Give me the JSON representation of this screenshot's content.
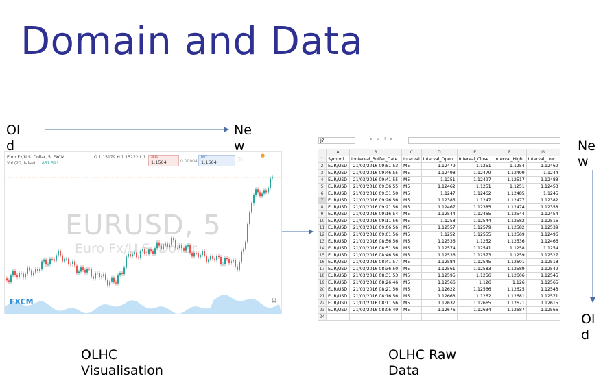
{
  "slide": {
    "title": "Domain and Data",
    "old_left": "Old",
    "new_top": "New",
    "new_right": "New",
    "old_right": "Old",
    "caption_left": "OLHC Visualisation",
    "caption_right": "OLHC Raw Data"
  },
  "chart_image": {
    "header_title": "Euro Fx/U.S. Dollar, 5, FXCM",
    "ohlc": "O 1.15179 H 1.15222 L 1.",
    "volume_label": "Vol (20, false)",
    "volume_values": "851 591",
    "sell_label": "SELL",
    "sell_price": "1.1564",
    "spread": "0.00004",
    "buy_label": "BUY",
    "buy_price": "1.1564",
    "watermark_symbol": "EURUSD, 5",
    "watermark_name": "Euro Fx/U.S. Dollar",
    "logo": "FXCM",
    "colors": {
      "up": "#26a69a",
      "down": "#ef5350",
      "volume": "#8fc9ef"
    }
  },
  "sheet_image": {
    "name_box": "J7",
    "fx_label": "fx",
    "columns": [
      "A",
      "B",
      "C",
      "D",
      "E",
      "F",
      "G"
    ],
    "headers": [
      "Symbol",
      "Innterval_Buffer_Date",
      "Interval",
      "Interval_Open",
      "Interval_Close",
      "Interval_High",
      "Interval_Low"
    ],
    "rows": [
      [
        "EUR/USD",
        "21/03/2016 09:51:53",
        "M5",
        "1.12479",
        "1.1251",
        "1.1254",
        "1.12469"
      ],
      [
        "EUR/USD",
        "21/03/2016 09:46:55",
        "M5",
        "1.12498",
        "1.12479",
        "1.12499",
        "1.1244"
      ],
      [
        "EUR/USD",
        "21/03/2016 09:41:55",
        "M5",
        "1.1251",
        "1.12497",
        "1.12517",
        "1.12483"
      ],
      [
        "EUR/USD",
        "21/03/2016 09:36:55",
        "M5",
        "1.12462",
        "1.1251",
        "1.1251",
        "1.12453"
      ],
      [
        "EUR/USD",
        "21/03/2016 09:31:50",
        "M5",
        "1.1247",
        "1.12462",
        "1.12485",
        "1.1245"
      ],
      [
        "EUR/USD",
        "21/03/2016 09:26:56",
        "M5",
        "1.12385",
        "1.1247",
        "1.12477",
        "1.12382"
      ],
      [
        "EUR/USD",
        "21/03/2016 09:21:56",
        "M5",
        "1.12467",
        "1.12385",
        "1.12474",
        "1.12358"
      ],
      [
        "EUR/USD",
        "21/03/2016 09:16:54",
        "M5",
        "1.12544",
        "1.12465",
        "1.12544",
        "1.12454"
      ],
      [
        "EUR/USD",
        "21/03/2016 09:11:56",
        "M5",
        "1.1258",
        "1.12544",
        "1.12582",
        "1.12516"
      ],
      [
        "EUR/USD",
        "21/03/2016 09:06:56",
        "M5",
        "1.12557",
        "1.12579",
        "1.12582",
        "1.12539"
      ],
      [
        "EUR/USD",
        "21/03/2016 09:01:56",
        "M5",
        "1.1252",
        "1.12555",
        "1.12569",
        "1.12496"
      ],
      [
        "EUR/USD",
        "21/03/2016 08:56:56",
        "M5",
        "1.12536",
        "1.1252",
        "1.12536",
        "1.12466"
      ],
      [
        "EUR/USD",
        "21/03/2016 08:51:56",
        "M5",
        "1.12574",
        "1.12541",
        "1.1258",
        "1.1254"
      ],
      [
        "EUR/USD",
        "21/03/2016 08:46:56",
        "M5",
        "1.12536",
        "1.12573",
        "1.1259",
        "1.12527"
      ],
      [
        "EUR/USD",
        "21/03/2016 08:41:57",
        "M5",
        "1.12584",
        "1.12545",
        "1.12601",
        "1.12518"
      ],
      [
        "EUR/USD",
        "21/03/2016 08:36:50",
        "M5",
        "1.12561",
        "1.12583",
        "1.12589",
        "1.12549"
      ],
      [
        "EUR/USD",
        "21/03/2016 08:31:53",
        "M5",
        "1.12595",
        "1.1256",
        "1.12606",
        "1.12545"
      ],
      [
        "EUR/USD",
        "21/03/2016 08:26:46",
        "M5",
        "1.12566",
        "1.126",
        "1.126",
        "1.12565"
      ],
      [
        "EUR/USD",
        "21/03/2016 08:21:56",
        "M5",
        "1.12622",
        "1.12566",
        "1.12625",
        "1.12543"
      ],
      [
        "EUR/USD",
        "21/03/2016 08:16:56",
        "M5",
        "1.12663",
        "1.1262",
        "1.12681",
        "1.12571"
      ],
      [
        "EUR/USD",
        "21/03/2016 08:11:56",
        "M5",
        "1.12637",
        "1.12665",
        "1.12671",
        "1.12615"
      ],
      [
        "EUR/USD",
        "21/03/2016 08:06:49",
        "M5",
        "1.12676",
        "1.12634",
        "1.12687",
        "1.12566"
      ]
    ]
  }
}
